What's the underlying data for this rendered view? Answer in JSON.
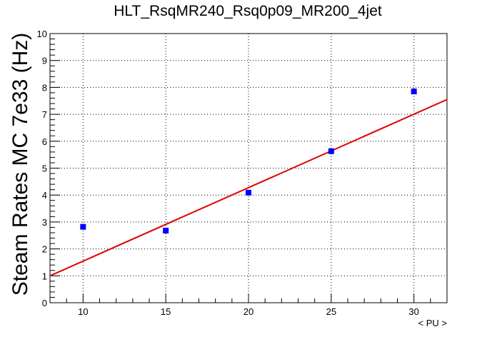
{
  "chart_data": {
    "type": "scatter",
    "title": "HLT_RsqMR240_Rsq0p09_MR200_4jet",
    "xlabel": "< PU >",
    "ylabel": "Steam Rates MC 7e33 (Hz)",
    "xlim": [
      8,
      32
    ],
    "ylim": [
      0,
      10
    ],
    "xticks": [
      10,
      15,
      20,
      25,
      30
    ],
    "yticks": [
      0,
      1,
      2,
      3,
      4,
      5,
      6,
      7,
      8,
      9,
      10
    ],
    "grid": true,
    "series": [
      {
        "type": "scatter",
        "color": "#0000ff",
        "marker": "square",
        "points": [
          {
            "x": 10,
            "y": 2.82
          },
          {
            "x": 15,
            "y": 2.68
          },
          {
            "x": 20,
            "y": 4.09
          },
          {
            "x": 25,
            "y": 5.63
          },
          {
            "x": 30,
            "y": 7.85
          }
        ]
      },
      {
        "type": "line",
        "color": "#dd0000",
        "description": "linear fit",
        "points": [
          {
            "x": 8,
            "y": 1.0
          },
          {
            "x": 32,
            "y": 7.55
          }
        ]
      }
    ]
  }
}
